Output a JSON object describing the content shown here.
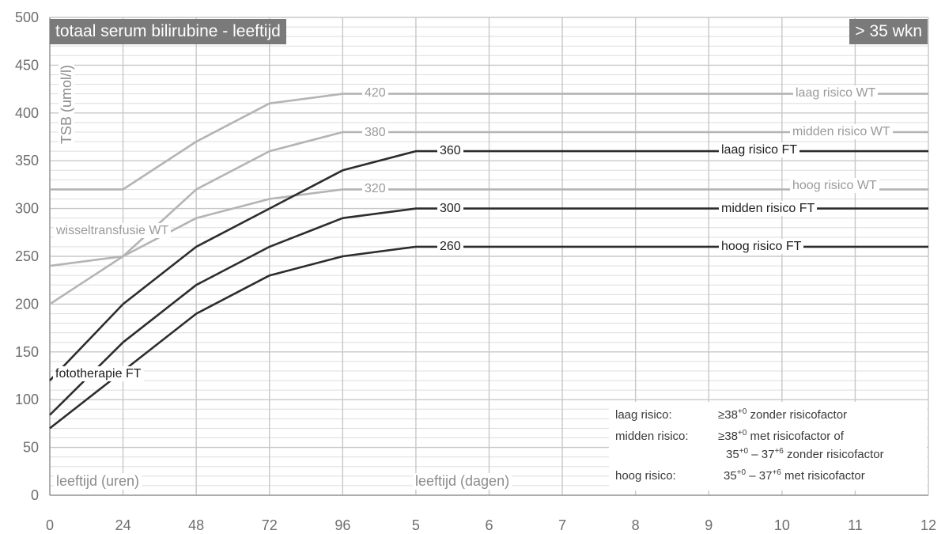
{
  "chart_data": {
    "type": "line",
    "title": "totaal serum bilirubine - leeftijd",
    "badge": "> 35 wkn",
    "ylabel": "TSB (umol/l)",
    "xlabel_hours": "leeftijd (uren)",
    "xlabel_days": "leeftijd (dagen)",
    "ylim": [
      0,
      500
    ],
    "y_ticks": [
      "0",
      "50",
      "100",
      "150",
      "200",
      "250",
      "300",
      "350",
      "400",
      "450",
      "500"
    ],
    "x_ticks": [
      "0",
      "24",
      "48",
      "72",
      "96",
      "5",
      "6",
      "7",
      "8",
      "9",
      "10",
      "11",
      "12"
    ],
    "x_note": "x in hours for 0-96 and 5 days; 1 day = 24 h (axis ends at 12 days = 288 h)",
    "xlim_hours": [
      0,
      288
    ],
    "grid": true,
    "series": [
      {
        "name": "laag risico WT",
        "group": "WT",
        "level": "420",
        "x": [
          0,
          24,
          48,
          72,
          96,
          288
        ],
        "y": [
          320,
          320,
          370,
          410,
          420,
          420
        ]
      },
      {
        "name": "midden risico WT",
        "group": "WT",
        "level": "380",
        "x": [
          0,
          24,
          48,
          72,
          96,
          288
        ],
        "y": [
          240,
          250,
          320,
          360,
          380,
          380
        ]
      },
      {
        "name": "hoog risico WT",
        "group": "WT",
        "level": "320",
        "x": [
          0,
          24,
          48,
          72,
          96,
          288
        ],
        "y": [
          200,
          250,
          290,
          310,
          320,
          320
        ]
      },
      {
        "name": "laag risico FT",
        "group": "FT",
        "level": "360",
        "x": [
          0,
          24,
          48,
          72,
          96,
          120,
          288
        ],
        "y": [
          120,
          200,
          260,
          300,
          340,
          360,
          360
        ]
      },
      {
        "name": "midden risico FT",
        "group": "FT",
        "level": "300",
        "x": [
          0,
          24,
          48,
          72,
          96,
          120,
          288
        ],
        "y": [
          84,
          160,
          220,
          260,
          290,
          300,
          300
        ]
      },
      {
        "name": "hoog risico FT",
        "group": "FT",
        "level": "260",
        "x": [
          0,
          24,
          48,
          72,
          96,
          120,
          288
        ],
        "y": [
          70,
          130,
          190,
          230,
          250,
          260,
          260
        ]
      }
    ],
    "curve_labels": {
      "wt": "wisseltransfusie WT",
      "ft": "fototherapie FT"
    },
    "colors": {
      "WT": "#b4b4b4",
      "FT": "#2d2d2d",
      "badge": "#7a7a7a",
      "grid": "#c8c8c8"
    }
  },
  "legend": {
    "laag_label": "laag risico:",
    "laag_prefix": "≥38",
    "laag_sup": "+0",
    "laag_text": " zonder risicofactor",
    "midden_label": "midden risico:",
    "midden_prefix": "≥38",
    "midden_sup": "+0",
    "midden_text": " met risicofactor of",
    "midden2_a": "35",
    "midden2_sup1": "+0",
    "midden2_b": " – 37",
    "midden2_sup2": "+6",
    "midden2_text": " zonder risicofactor",
    "hoog_label": "hoog risico:",
    "hoog_a": "35",
    "hoog_sup1": "+0",
    "hoog_b": " – 37",
    "hoog_sup2": "+6",
    "hoog_text": " met risicofactor"
  }
}
